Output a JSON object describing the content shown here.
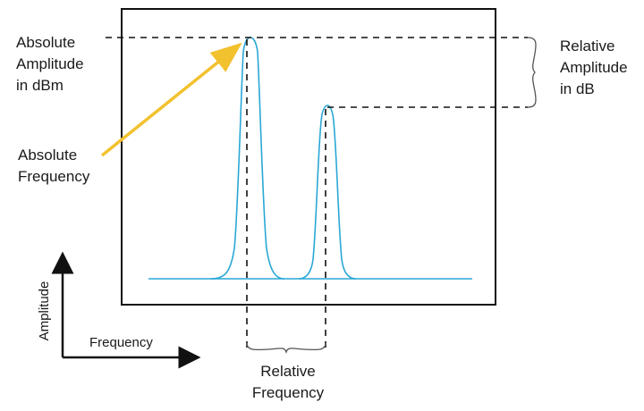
{
  "labels": {
    "absolute_amplitude": [
      "Absolute",
      "Amplitude",
      "in dBm"
    ],
    "absolute_frequency": [
      "Absolute",
      "Frequency"
    ],
    "relative_amplitude": [
      "Relative",
      "Amplitude",
      "in dB"
    ],
    "relative_frequency": [
      "Relative",
      "Frequency"
    ],
    "axis_y": "Amplitude",
    "axis_x": "Frequency"
  },
  "colors": {
    "trace": "#2aa7d6",
    "arrow": "#f2c12e",
    "frame": "#111111",
    "dashed": "#111111"
  }
}
